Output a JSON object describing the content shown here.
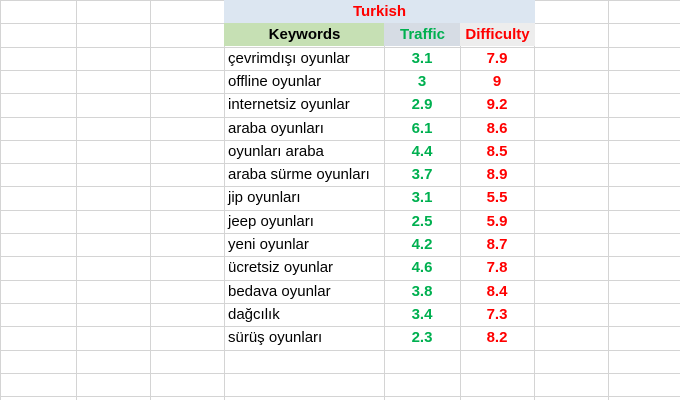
{
  "sheet": {
    "title": "Turkish",
    "headers": {
      "keywords": "Keywords",
      "traffic": "Traffic",
      "difficulty": "Difficulty"
    },
    "rows": [
      {
        "keyword": "çevrimdışı oyunlar",
        "traffic": "3.1",
        "difficulty": "7.9"
      },
      {
        "keyword": "offline oyunlar",
        "traffic": "3",
        "difficulty": "9"
      },
      {
        "keyword": "internetsiz oyunlar",
        "traffic": "2.9",
        "difficulty": "9.2"
      },
      {
        "keyword": "araba oyunları",
        "traffic": "6.1",
        "difficulty": "8.6"
      },
      {
        "keyword": "oyunları araba",
        "traffic": "4.4",
        "difficulty": "8.5"
      },
      {
        "keyword": "araba sürme oyunları",
        "traffic": "3.7",
        "difficulty": "8.9"
      },
      {
        "keyword": "jip oyunları",
        "traffic": "3.1",
        "difficulty": "5.5"
      },
      {
        "keyword": "jeep oyunları",
        "traffic": "2.5",
        "difficulty": "5.9"
      },
      {
        "keyword": "yeni oyunlar",
        "traffic": "4.2",
        "difficulty": "8.7"
      },
      {
        "keyword": "ücretsiz oyunlar",
        "traffic": "4.6",
        "difficulty": "7.8"
      },
      {
        "keyword": "bedava oyunlar",
        "traffic": "3.8",
        "difficulty": "8.4"
      },
      {
        "keyword": "dağcılık",
        "traffic": "3.4",
        "difficulty": "7.3"
      },
      {
        "keyword": "sürüş oyunları",
        "traffic": "2.3",
        "difficulty": "8.2"
      }
    ],
    "colors": {
      "title_bg": "#dce6f1",
      "keywords_header_bg": "#c6e0b4",
      "traffic_header_bg": "#d6dce4",
      "difficulty_header_bg": "#ededed",
      "traffic_text": "#00b050",
      "difficulty_text": "#ff0000",
      "gridline": "#d4d4d4"
    }
  }
}
